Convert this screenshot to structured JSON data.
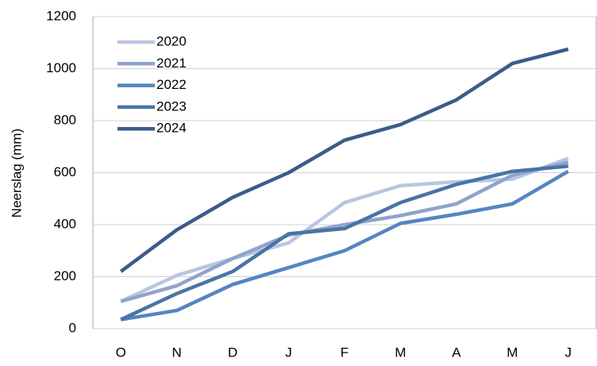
{
  "chart_data": {
    "type": "line",
    "y_label": "Neerslag (mm)",
    "categories": [
      "O",
      "N",
      "D",
      "J",
      "F",
      "M",
      "A",
      "M",
      "J"
    ],
    "series": [
      {
        "name": "2020",
        "color": "#b9c6e0",
        "values": [
          105,
          205,
          270,
          330,
          485,
          550,
          565,
          575,
          655
        ]
      },
      {
        "name": "2021",
        "color": "#8fa4cd",
        "values": [
          105,
          165,
          270,
          360,
          400,
          435,
          480,
          590,
          640
        ]
      },
      {
        "name": "2022",
        "color": "#5585c1",
        "values": [
          35,
          70,
          170,
          235,
          300,
          405,
          440,
          480,
          605
        ]
      },
      {
        "name": "2023",
        "color": "#4a73a6",
        "values": [
          35,
          135,
          220,
          365,
          385,
          485,
          555,
          605,
          625
        ]
      },
      {
        "name": "2024",
        "color": "#3b5c89",
        "values": [
          220,
          380,
          505,
          600,
          725,
          785,
          880,
          1020,
          1075
        ]
      }
    ],
    "ylim": [
      0,
      1200
    ],
    "yticks": [
      0,
      200,
      400,
      600,
      800,
      1000,
      1200
    ],
    "grid": true,
    "legend": "top-left"
  }
}
